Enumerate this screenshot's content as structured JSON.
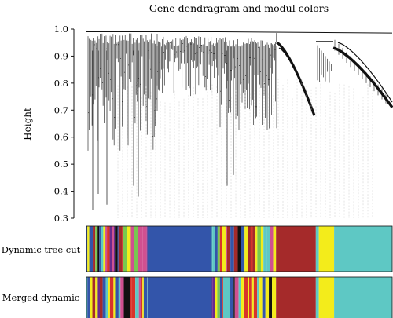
{
  "chart_data": {
    "type": "dendrogram",
    "title": "Gene dendragram and modul colors",
    "ylabel": "Height",
    "ylim": [
      0.3,
      1.0
    ],
    "yticks": [
      "1.0",
      "0.9",
      "0.8",
      "0.7",
      "0.6",
      "0.5",
      "0.4",
      "0.3"
    ],
    "module_rows": [
      "Dynamic tree cut",
      "Merged dynamic"
    ],
    "palette": {
      "turquoise": "#5ec8c4",
      "blue": "#3355aa",
      "brown": "#a52a2a",
      "yellow": "#f3ec1b",
      "green": "#78c850",
      "purple": "#6a2a8c",
      "black": "#111111",
      "red": "#d8342b",
      "magenta": "#d05090"
    },
    "module_fraction_ranges": [
      {
        "row": "Dynamic tree cut",
        "module": "mixed",
        "start": 0.0,
        "end": 0.2
      },
      {
        "row": "Dynamic tree cut",
        "module": "blue",
        "start": 0.2,
        "end": 0.41
      },
      {
        "row": "Dynamic tree cut",
        "module": "mixed",
        "start": 0.41,
        "end": 0.62
      },
      {
        "row": "Dynamic tree cut",
        "module": "brown",
        "start": 0.62,
        "end": 0.75
      },
      {
        "row": "Dynamic tree cut",
        "module": "yellow",
        "start": 0.76,
        "end": 0.81
      },
      {
        "row": "Dynamic tree cut",
        "module": "turquoise",
        "start": 0.81,
        "end": 1.0
      }
    ]
  }
}
